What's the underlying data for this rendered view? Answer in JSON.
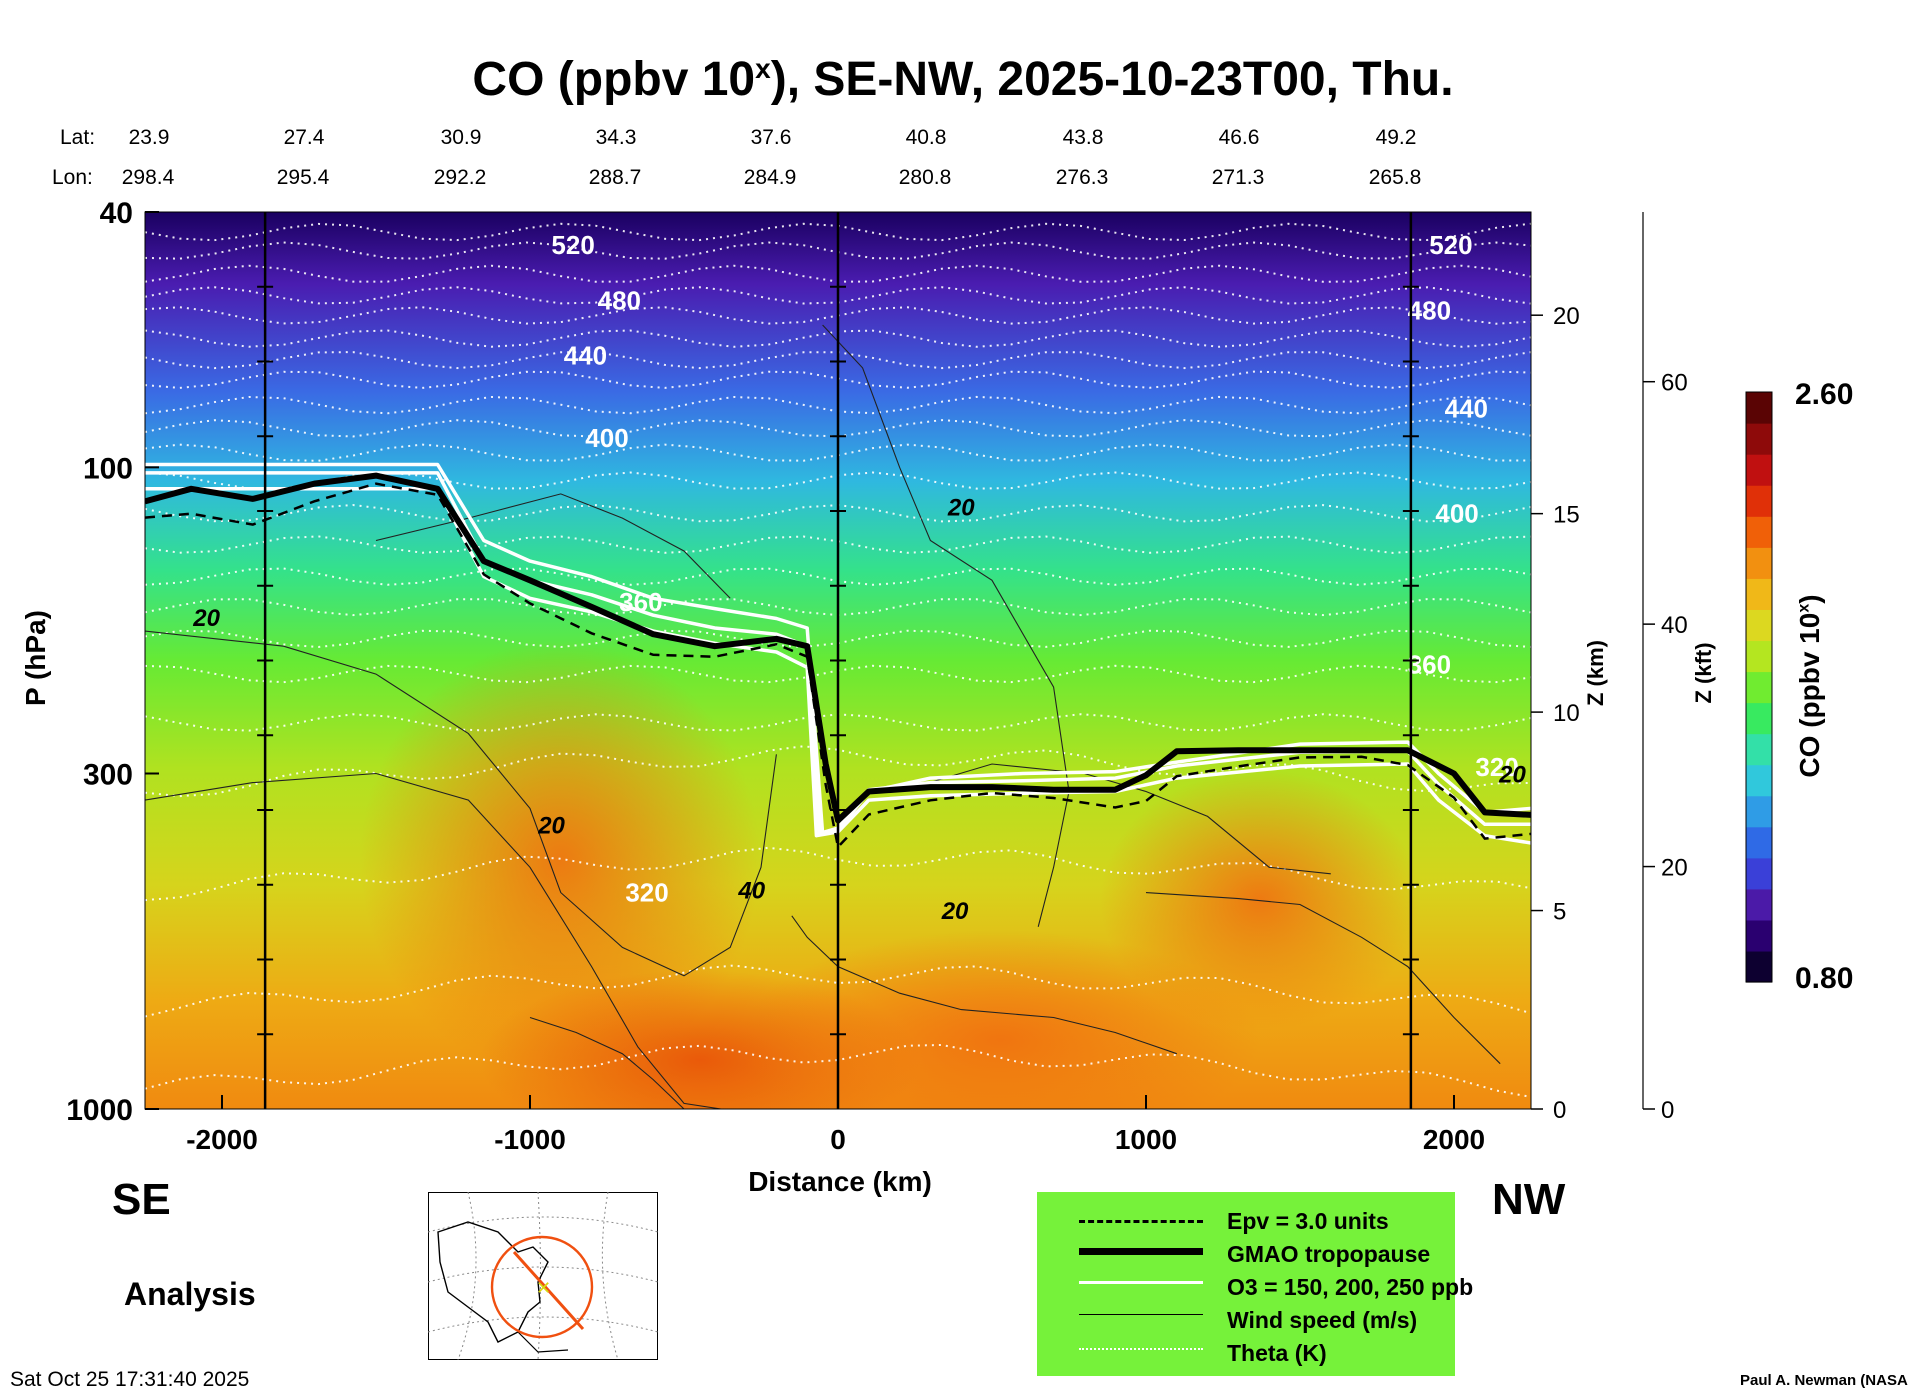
{
  "title": {
    "main": "CO (ppbv 10",
    "sup": "x",
    "rest": "), SE-NW, 2025-10-23T00, Thu."
  },
  "lat_label": "Lat:",
  "lon_label": "Lon:",
  "lats": [
    "23.9",
    "27.4",
    "30.9",
    "34.3",
    "37.6",
    "40.8",
    "43.8",
    "46.6",
    "49.2"
  ],
  "lons": [
    "298.4",
    "295.4",
    "292.2",
    "288.7",
    "284.9",
    "280.8",
    "276.3",
    "271.3",
    "265.8"
  ],
  "left_label": "SE",
  "right_label": "NW",
  "mode_label": "Analysis",
  "timestamp": "Sat Oct 25 17:31:40 2025",
  "credit": "Paul A. Newman (NASA",
  "colors": {
    "tropopause": "#000000",
    "ozone": "#ffffff",
    "theta": "#ffffff",
    "wind": "#222222",
    "legend_bg": "#76f23a"
  },
  "legend": {
    "items": [
      {
        "label": "Epv = 3.0 units",
        "style": "dashed-black"
      },
      {
        "label": "GMAO tropopause",
        "style": "thick-black"
      },
      {
        "label": "O3 = 150, 200, 250 ppb",
        "style": "white"
      },
      {
        "label": "Wind speed (m/s)",
        "style": "thin-black"
      },
      {
        "label": "Theta (K)",
        "style": "dotted-white"
      }
    ]
  },
  "colorbar": {
    "label": "CO (ppbv 10",
    "label_sup": "x",
    "label_end": ")",
    "max_label": "2.60",
    "min_label": "0.80",
    "colors": [
      "#0d0030",
      "#2a0070",
      "#4b1aa8",
      "#3a40d8",
      "#2f6ae6",
      "#2f9ce6",
      "#30c8dc",
      "#33e0a8",
      "#38ea60",
      "#70ec30",
      "#b4e620",
      "#dcd820",
      "#f0b818",
      "#f29010",
      "#f06008",
      "#e03008",
      "#c01010",
      "#8e0a0a",
      "#5a0404"
    ]
  },
  "chart_data": {
    "type": "heatmap",
    "title": "CO (ppbv 10^x), SE-NW, 2025-10-23T00, Thu.",
    "xlabel": "Distance (km)",
    "ylabel": "P (hPa)",
    "ylabel_right": "Z (km)",
    "ylabel_right2": "Z (kft)",
    "xlim": [
      -2250,
      2250
    ],
    "ylim": [
      1000,
      40
    ],
    "yscale": "log",
    "x_ticks": [
      -2000,
      -1000,
      0,
      1000,
      2000
    ],
    "p_ticks": [
      1000,
      300,
      100,
      40
    ],
    "z_km_ticks": [
      0,
      5,
      10,
      15,
      20
    ],
    "z_kft_ticks": [
      0,
      20,
      40,
      60
    ],
    "vertical_marker_lines_km": [
      -1860,
      0,
      1860
    ],
    "colorbar_range": [
      0.8,
      2.6
    ],
    "tropopause": {
      "x": [
        -2250,
        -2100,
        -1900,
        -1700,
        -1500,
        -1300,
        -1150,
        -1000,
        -800,
        -600,
        -400,
        -200,
        -100,
        -40,
        0,
        100,
        300,
        500,
        700,
        900,
        1000,
        1100,
        1300,
        1500,
        1700,
        1850,
        2000,
        2100,
        2250
      ],
      "p": [
        113,
        108,
        112,
        106,
        103,
        108,
        140,
        150,
        165,
        182,
        190,
        185,
        190,
        290,
        355,
        320,
        315,
        315,
        318,
        318,
        302,
        277,
        276,
        276,
        276,
        276,
        300,
        345,
        348
      ]
    },
    "ozone_contours": [
      {
        "x": [
          -2250,
          -1300,
          -1150,
          -1000,
          -800,
          -600,
          -400,
          -200,
          -100,
          -50,
          0,
          100,
          300,
          600,
          900,
          1100,
          1500,
          1850,
          1950,
          2100,
          2250
        ],
        "p": [
          99,
          99,
          130,
          140,
          148,
          160,
          166,
          172,
          178,
          372,
          368,
          320,
          305,
          300,
          298,
          288,
          270,
          268,
          300,
          345,
          340
        ]
      },
      {
        "x": [
          -2250,
          -1300,
          -1150,
          -1000,
          -800,
          -600,
          -400,
          -200,
          -100,
          -60,
          0,
          100,
          300,
          600,
          900,
          1100,
          1500,
          1850,
          1950,
          2100,
          2250
        ],
        "p": [
          102,
          102,
          140,
          150,
          158,
          170,
          178,
          182,
          190,
          372,
          365,
          318,
          310,
          308,
          305,
          292,
          278,
          277,
          312,
          360,
          360
        ]
      },
      {
        "x": [
          -2250,
          -1300,
          -1150,
          -1000,
          -800,
          -600,
          -400,
          -200,
          -100,
          -70,
          0,
          100,
          300,
          600,
          900,
          1100,
          1500,
          1850,
          1950,
          2100,
          2250
        ],
        "p": [
          108,
          108,
          148,
          160,
          168,
          180,
          188,
          194,
          205,
          375,
          370,
          330,
          325,
          322,
          320,
          305,
          292,
          290,
          330,
          375,
          385
        ]
      }
    ],
    "theta_labels": [
      {
        "value": "520",
        "x": -860,
        "p": 45
      },
      {
        "value": "480",
        "x": -710,
        "p": 55
      },
      {
        "value": "440",
        "x": -820,
        "p": 67
      },
      {
        "value": "400",
        "x": -750,
        "p": 90
      },
      {
        "value": "360",
        "x": -640,
        "p": 162
      },
      {
        "value": "320",
        "x": -620,
        "p": 460
      },
      {
        "value": "520",
        "x": 1990,
        "p": 45
      },
      {
        "value": "480",
        "x": 1920,
        "p": 57
      },
      {
        "value": "440",
        "x": 2040,
        "p": 81
      },
      {
        "value": "400",
        "x": 2010,
        "p": 118
      },
      {
        "value": "360",
        "x": 1920,
        "p": 203
      },
      {
        "value": "320",
        "x": 2140,
        "p": 293
      }
    ],
    "theta_isentropes_p": [
      43,
      46,
      50,
      54,
      58,
      63,
      68,
      73,
      80,
      87,
      95,
      105,
      118,
      132,
      148,
      165,
      185,
      210,
      250,
      320,
      460,
      700,
      930
    ],
    "wind_labels": [
      {
        "value": "20",
        "x": -2050,
        "p": 171
      },
      {
        "value": "20",
        "x": 400,
        "p": 115
      },
      {
        "value": "20",
        "x": -930,
        "p": 360
      },
      {
        "value": "40",
        "x": -280,
        "p": 455
      },
      {
        "value": "20",
        "x": 380,
        "p": 490
      },
      {
        "value": "20",
        "x": 2190,
        "p": 300
      }
    ]
  }
}
